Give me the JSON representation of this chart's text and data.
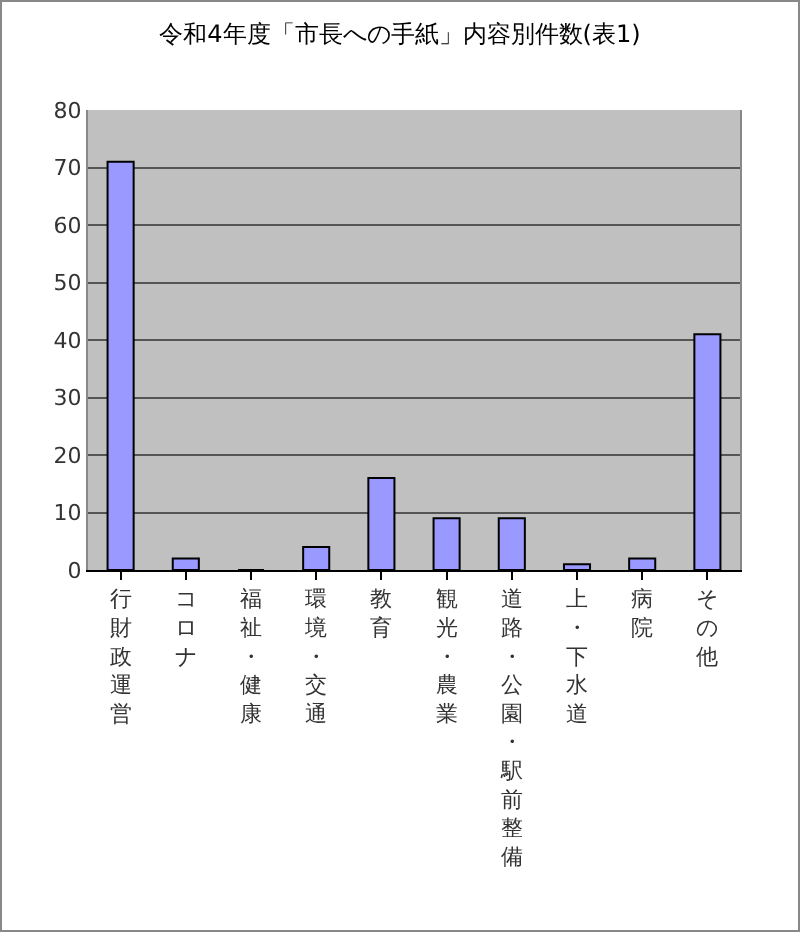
{
  "chart_data": {
    "type": "bar",
    "title": "令和4年度「市長への手紙」内容別件数(表1)",
    "categories": [
      "行財政運営",
      "コロナ",
      "福祉・健康",
      "環境・交通",
      "教育",
      "観光・農業",
      "道路・公園・駅前整備",
      "上・下水道",
      "病院",
      "その他"
    ],
    "values": [
      71,
      2,
      0,
      4,
      16,
      9,
      9,
      1,
      2,
      41
    ],
    "color": "#9999ff",
    "ylim": [
      0,
      80
    ],
    "yticks": [
      0,
      10,
      20,
      30,
      40,
      50,
      60,
      70,
      80
    ],
    "grid": "y",
    "legend": false
  }
}
